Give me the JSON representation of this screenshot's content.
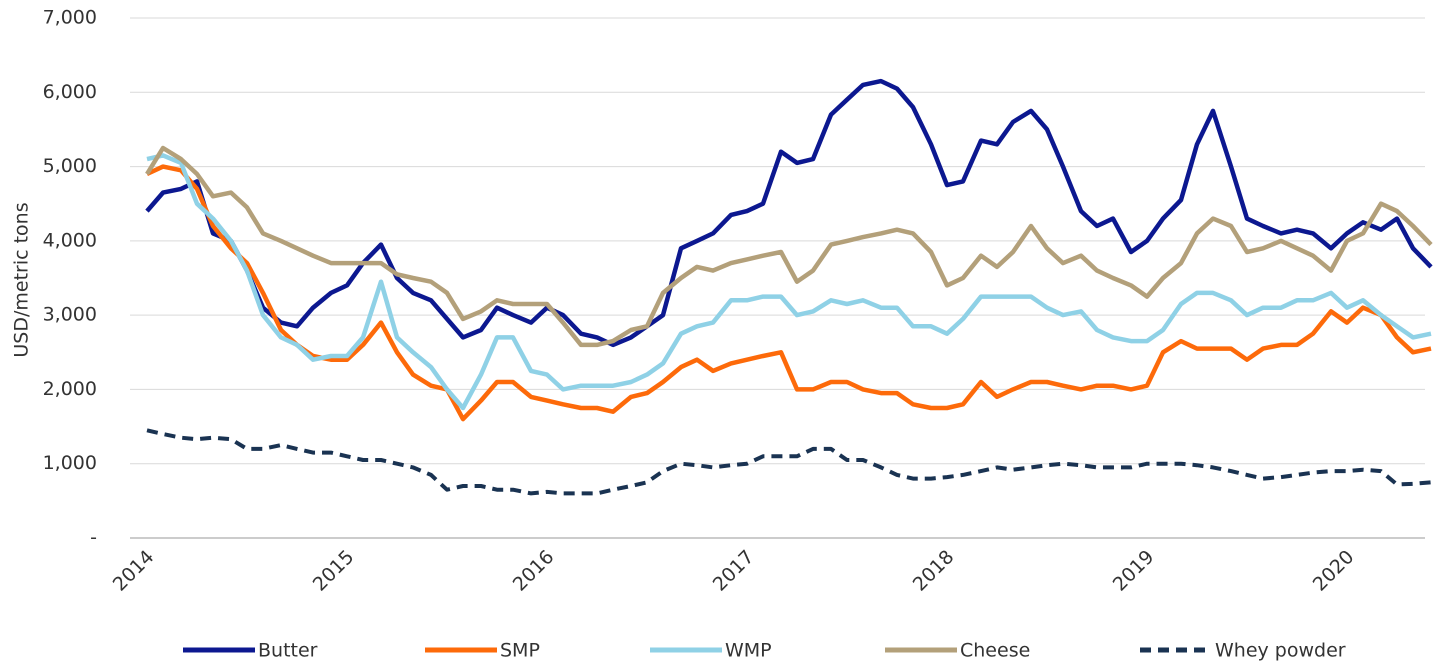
{
  "chart_data": {
    "type": "line",
    "y_label": "USD/metric tons",
    "x": [
      2014,
      2014.08,
      2014.17,
      2014.25,
      2014.33,
      2014.42,
      2014.5,
      2014.58,
      2014.67,
      2014.75,
      2014.83,
      2014.92,
      2015,
      2015.08,
      2015.17,
      2015.25,
      2015.33,
      2015.42,
      2015.5,
      2015.58,
      2015.67,
      2015.75,
      2015.83,
      2015.92,
      2016,
      2016.08,
      2016.17,
      2016.25,
      2016.33,
      2016.42,
      2016.5,
      2016.58,
      2016.67,
      2016.75,
      2016.83,
      2016.92,
      2017,
      2017.08,
      2017.17,
      2017.25,
      2017.33,
      2017.42,
      2017.5,
      2017.58,
      2017.67,
      2017.75,
      2017.83,
      2017.92,
      2018,
      2018.08,
      2018.17,
      2018.25,
      2018.33,
      2018.42,
      2018.5,
      2018.58,
      2018.67,
      2018.75,
      2018.83,
      2018.92,
      2019,
      2019.08,
      2019.17,
      2019.25,
      2019.33,
      2019.42,
      2019.5,
      2019.58,
      2019.67,
      2019.75,
      2019.83,
      2019.92,
      2020,
      2020.08,
      2020.17,
      2020.25,
      2020.33,
      2020.42
    ],
    "series": [
      {
        "name": "Butter",
        "color": "#0c1890",
        "style": "solid",
        "values": [
          4400,
          4650,
          4700,
          4800,
          4100,
          4000,
          3600,
          3100,
          2900,
          2850,
          3100,
          3300,
          3400,
          3700,
          3950,
          3500,
          3300,
          3200,
          2950,
          2700,
          2800,
          3100,
          3000,
          2900,
          3100,
          3000,
          2750,
          2700,
          2600,
          2700,
          2850,
          3000,
          3900,
          4000,
          4100,
          4350,
          4400,
          4500,
          5200,
          5050,
          5100,
          5700,
          5900,
          6100,
          6150,
          6050,
          5800,
          5300,
          4750,
          4800,
          5350,
          5300,
          5600,
          5750,
          5500,
          5000,
          4400,
          4200,
          4300,
          3850,
          4000,
          4300,
          4550,
          5300,
          5750,
          5000,
          4300,
          4200,
          4100,
          4150,
          4100,
          3900,
          4100,
          4250,
          4150,
          4300,
          3900,
          3650
        ]
      },
      {
        "name": "SMP",
        "color": "#fd6a0a",
        "style": "solid",
        "values": [
          4900,
          5000,
          4950,
          4700,
          4200,
          3900,
          3700,
          3300,
          2800,
          2600,
          2450,
          2400,
          2400,
          2600,
          2900,
          2500,
          2200,
          2050,
          2000,
          1600,
          1850,
          2100,
          2100,
          1900,
          1850,
          1800,
          1750,
          1750,
          1700,
          1900,
          1950,
          2100,
          2300,
          2400,
          2250,
          2350,
          2400,
          2450,
          2500,
          2000,
          2000,
          2100,
          2100,
          2000,
          1950,
          1950,
          1800,
          1750,
          1750,
          1800,
          2100,
          1900,
          2000,
          2100,
          2100,
          2050,
          2000,
          2050,
          2050,
          2000,
          2050,
          2500,
          2650,
          2550,
          2550,
          2550,
          2400,
          2550,
          2600,
          2600,
          2750,
          3050,
          2900,
          3100,
          3000,
          2700,
          2500,
          2550
        ]
      },
      {
        "name": "WMP",
        "color": "#8fd1e6",
        "style": "solid",
        "values": [
          5100,
          5150,
          5050,
          4500,
          4300,
          4000,
          3600,
          3000,
          2700,
          2600,
          2400,
          2450,
          2450,
          2700,
          3450,
          2700,
          2500,
          2300,
          2000,
          1750,
          2200,
          2700,
          2700,
          2250,
          2200,
          2000,
          2050,
          2050,
          2050,
          2100,
          2200,
          2350,
          2750,
          2850,
          2900,
          3200,
          3200,
          3250,
          3250,
          3000,
          3050,
          3200,
          3150,
          3200,
          3100,
          3100,
          2850,
          2850,
          2750,
          2950,
          3250,
          3250,
          3250,
          3250,
          3100,
          3000,
          3050,
          2800,
          2700,
          2650,
          2650,
          2800,
          3150,
          3300,
          3300,
          3200,
          3000,
          3100,
          3100,
          3200,
          3200,
          3300,
          3100,
          3200,
          3000,
          2850,
          2700,
          2750
        ]
      },
      {
        "name": "Cheese",
        "color": "#b3a07a",
        "style": "solid",
        "values": [
          4900,
          5250,
          5100,
          4900,
          4600,
          4650,
          4450,
          4100,
          4000,
          3900,
          3800,
          3700,
          3700,
          3700,
          3700,
          3550,
          3500,
          3450,
          3300,
          2950,
          3050,
          3200,
          3150,
          3150,
          3150,
          2900,
          2600,
          2600,
          2650,
          2800,
          2850,
          3300,
          3500,
          3650,
          3600,
          3700,
          3750,
          3800,
          3850,
          3450,
          3600,
          3950,
          4000,
          4050,
          4100,
          4150,
          4100,
          3850,
          3400,
          3500,
          3800,
          3650,
          3850,
          4200,
          3900,
          3700,
          3800,
          3600,
          3500,
          3400,
          3250,
          3500,
          3700,
          4100,
          4300,
          4200,
          3850,
          3900,
          4000,
          3900,
          3800,
          3600,
          4000,
          4100,
          4500,
          4400,
          4200,
          3950
        ]
      },
      {
        "name": "Whey powder",
        "color": "#1a3352",
        "style": "dashed",
        "values": [
          1450,
          1400,
          1350,
          1330,
          1350,
          1330,
          1200,
          1200,
          1250,
          1200,
          1150,
          1150,
          1100,
          1050,
          1050,
          1000,
          950,
          850,
          650,
          700,
          700,
          650,
          650,
          600,
          620,
          600,
          600,
          600,
          650,
          700,
          750,
          900,
          1000,
          980,
          950,
          980,
          1000,
          1100,
          1100,
          1100,
          1200,
          1200,
          1050,
          1050,
          950,
          850,
          800,
          800,
          820,
          850,
          900,
          950,
          920,
          950,
          980,
          1000,
          980,
          950,
          950,
          950,
          1000,
          1000,
          1000,
          980,
          950,
          900,
          850,
          800,
          820,
          850,
          880,
          900,
          900,
          920,
          900,
          720,
          730,
          750
        ]
      }
    ],
    "xlim": [
      2014,
      2020.42
    ],
    "xticks": [
      2014,
      2015,
      2016,
      2017,
      2018,
      2019,
      2020
    ],
    "ylim": [
      0,
      7000
    ],
    "yticks": [
      {
        "value": 0,
        "label": "-"
      },
      {
        "value": 1000,
        "label": "1,000"
      },
      {
        "value": 2000,
        "label": "2,000"
      },
      {
        "value": 3000,
        "label": "3,000"
      },
      {
        "value": 4000,
        "label": "4,000"
      },
      {
        "value": 5000,
        "label": "5,000"
      },
      {
        "value": 6000,
        "label": "6,000"
      },
      {
        "value": 7000,
        "label": "7,000"
      }
    ],
    "grid": true,
    "legend": "bottom"
  }
}
